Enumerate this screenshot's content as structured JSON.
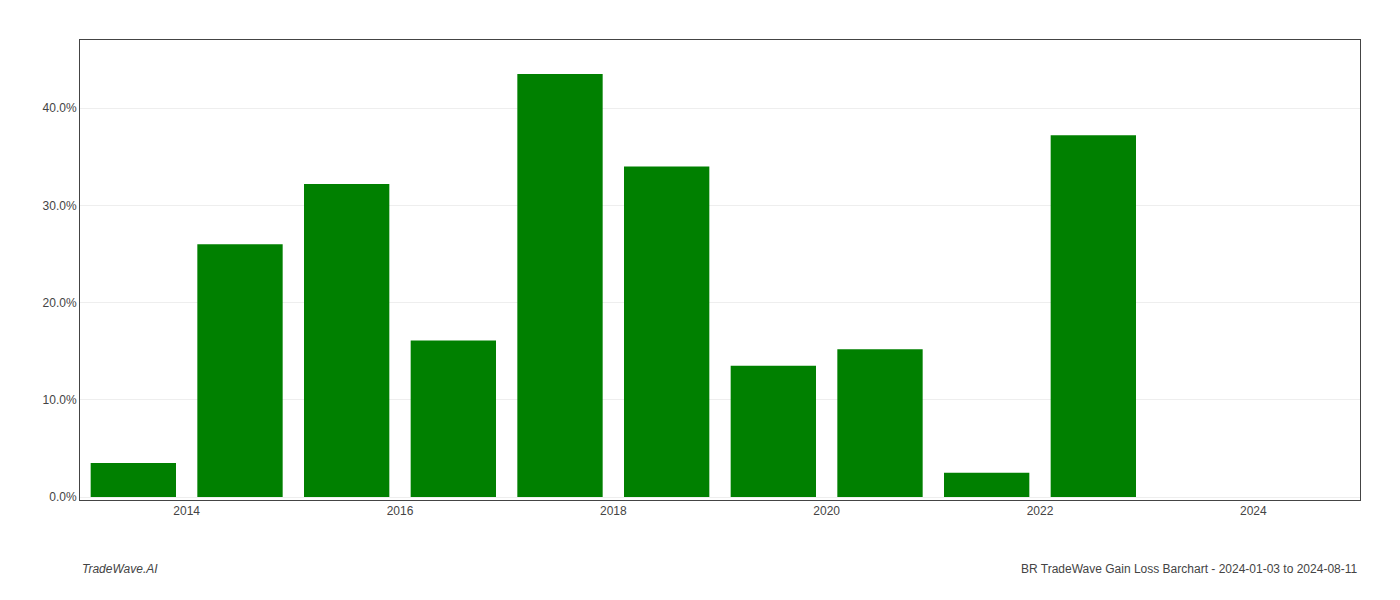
{
  "chart_data": {
    "type": "bar",
    "x": [
      2013.5,
      2014.5,
      2015.5,
      2016.5,
      2017.5,
      2018.5,
      2019.5,
      2020.5,
      2021.5,
      2022.5
    ],
    "values": [
      0.035,
      0.26,
      0.322,
      0.161,
      0.435,
      0.34,
      0.135,
      0.152,
      0.025,
      0.372
    ],
    "color": "#008000",
    "xlim": [
      2013.0,
      2025.0
    ],
    "xticks": [
      2014,
      2016,
      2018,
      2020,
      2022,
      2024
    ],
    "ylim": [
      -0.003,
      0.47
    ],
    "yticks": [
      {
        "value": 0.0,
        "label": "0.0%"
      },
      {
        "value": 0.1,
        "label": "10.0%"
      },
      {
        "value": 0.2,
        "label": "20.0%"
      },
      {
        "value": 0.3,
        "label": "30.0%"
      },
      {
        "value": 0.4,
        "label": "40.0%"
      }
    ],
    "grid": true,
    "annotations": [
      "TradeWave.AI",
      "BR TradeWave Gain Loss Barchart - 2024-01-03 to 2024-08-11"
    ]
  }
}
